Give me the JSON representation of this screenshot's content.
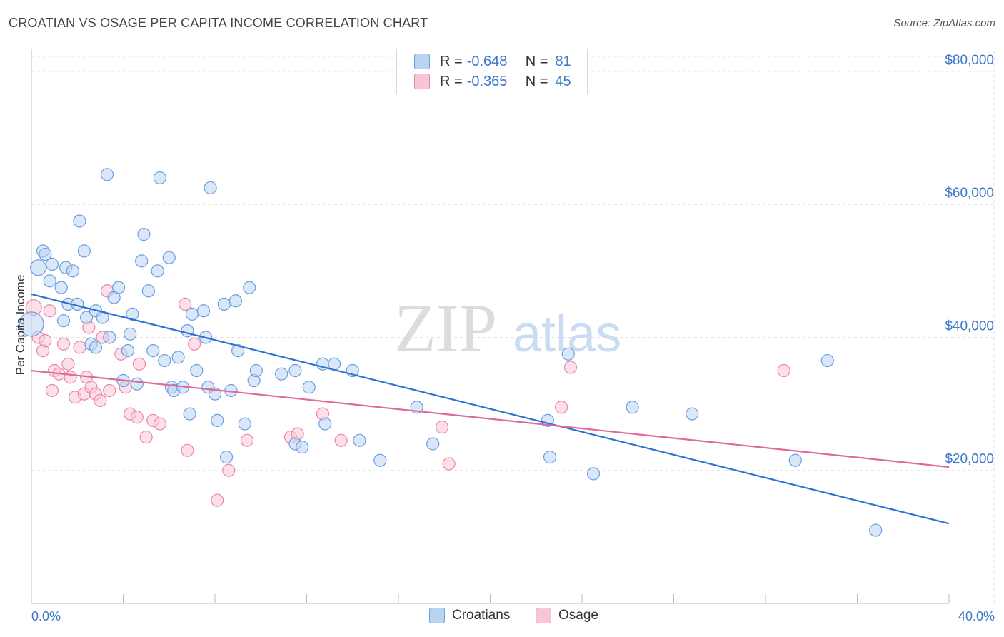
{
  "title": "CROATIAN VS OSAGE PER CAPITA INCOME CORRELATION CHART",
  "source": "Source: ZipAtlas.com",
  "watermark": {
    "zip": "ZIP",
    "atlas": "atlas"
  },
  "legend": {
    "rows": [
      {
        "r_label": "R =",
        "r_value": "-0.648",
        "n_label": "N =",
        "n_value": "81"
      },
      {
        "r_label": "R =",
        "r_value": "-0.365",
        "n_label": "N =",
        "n_value": "45"
      }
    ]
  },
  "bottom_legend": {
    "croatians": "Croatians",
    "osage": "Osage"
  },
  "colors": {
    "croatians_fill": "#b9d3f3",
    "croatians_stroke": "#6a9fe0",
    "croatians_line": "#2f72d4",
    "osage_fill": "#f9c4d6",
    "osage_stroke": "#ea88aa",
    "osage_line": "#e0689a",
    "tick_text": "#3b78c9",
    "grid": "#e2e2e2"
  },
  "chart_data": {
    "type": "scatter",
    "ylabel": "Per Capita Income",
    "xlim": [
      0,
      40
    ],
    "ylim": [
      0,
      83000
    ],
    "y_ticks": [
      {
        "v": 20000,
        "label": "$20,000"
      },
      {
        "v": 40000,
        "label": "$40,000"
      },
      {
        "v": 60000,
        "label": "$60,000"
      },
      {
        "v": 80000,
        "label": "$80,000"
      }
    ],
    "x_tick_labels": [
      {
        "v": 0,
        "label": "0.0%"
      },
      {
        "v": 40,
        "label": "40.0%"
      }
    ],
    "grid": true,
    "series": [
      {
        "name": "Croatians",
        "r": -0.648,
        "n": 81,
        "trend": {
          "x0": 0,
          "y0": 46500,
          "x1": 40,
          "y1": 12000
        },
        "points": [
          [
            0.0,
            42000
          ],
          [
            0.3,
            50500
          ],
          [
            0.5,
            53000
          ],
          [
            0.6,
            52500
          ],
          [
            0.8,
            48500
          ],
          [
            0.9,
            51000
          ],
          [
            1.3,
            47500
          ],
          [
            1.5,
            50500
          ],
          [
            1.4,
            42500
          ],
          [
            1.6,
            45000
          ],
          [
            1.8,
            50000
          ],
          [
            2.0,
            45000
          ],
          [
            2.1,
            57500
          ],
          [
            2.3,
            53000
          ],
          [
            2.4,
            43000
          ],
          [
            2.6,
            39000
          ],
          [
            2.8,
            44000
          ],
          [
            2.8,
            38500
          ],
          [
            3.1,
            43000
          ],
          [
            3.3,
            64500
          ],
          [
            3.4,
            40000
          ],
          [
            3.6,
            46000
          ],
          [
            3.8,
            47500
          ],
          [
            4.0,
            33500
          ],
          [
            4.2,
            38000
          ],
          [
            4.3,
            40500
          ],
          [
            4.4,
            43500
          ],
          [
            4.6,
            33000
          ],
          [
            4.8,
            51500
          ],
          [
            4.9,
            55500
          ],
          [
            5.1,
            47000
          ],
          [
            5.3,
            38000
          ],
          [
            5.5,
            50000
          ],
          [
            5.6,
            64000
          ],
          [
            5.8,
            36500
          ],
          [
            6.0,
            52000
          ],
          [
            6.1,
            32500
          ],
          [
            6.2,
            32000
          ],
          [
            6.4,
            37000
          ],
          [
            6.6,
            32500
          ],
          [
            6.8,
            41000
          ],
          [
            6.9,
            28500
          ],
          [
            7.0,
            43500
          ],
          [
            7.2,
            35000
          ],
          [
            7.5,
            44000
          ],
          [
            7.6,
            40000
          ],
          [
            7.7,
            32500
          ],
          [
            7.8,
            62500
          ],
          [
            8.0,
            31500
          ],
          [
            8.1,
            27500
          ],
          [
            8.4,
            45000
          ],
          [
            8.5,
            22000
          ],
          [
            8.7,
            32000
          ],
          [
            8.9,
            45500
          ],
          [
            9.0,
            38000
          ],
          [
            9.3,
            27000
          ],
          [
            9.5,
            47500
          ],
          [
            9.7,
            33500
          ],
          [
            9.8,
            35000
          ],
          [
            10.9,
            34500
          ],
          [
            11.5,
            35000
          ],
          [
            11.5,
            24000
          ],
          [
            11.8,
            23500
          ],
          [
            12.1,
            32500
          ],
          [
            12.7,
            36000
          ],
          [
            12.8,
            27000
          ],
          [
            13.2,
            36000
          ],
          [
            14.0,
            35000
          ],
          [
            14.3,
            24500
          ],
          [
            15.2,
            21500
          ],
          [
            16.8,
            29500
          ],
          [
            17.5,
            24000
          ],
          [
            22.5,
            27500
          ],
          [
            22.6,
            22000
          ],
          [
            23.4,
            37500
          ],
          [
            24.5,
            19500
          ],
          [
            26.2,
            29500
          ],
          [
            28.8,
            28500
          ],
          [
            33.3,
            21500
          ],
          [
            34.7,
            36500
          ],
          [
            36.8,
            11000
          ]
        ]
      },
      {
        "name": "Osage",
        "r": -0.365,
        "n": 45,
        "trend": {
          "x0": 0,
          "y0": 35000,
          "x1": 40,
          "y1": 20500
        },
        "points": [
          [
            0.1,
            44500
          ],
          [
            0.3,
            40000
          ],
          [
            0.5,
            38000
          ],
          [
            0.6,
            39500
          ],
          [
            0.8,
            44000
          ],
          [
            0.9,
            32000
          ],
          [
            1.0,
            35000
          ],
          [
            1.2,
            34500
          ],
          [
            1.4,
            39000
          ],
          [
            1.6,
            36000
          ],
          [
            1.7,
            34000
          ],
          [
            1.9,
            31000
          ],
          [
            2.1,
            38500
          ],
          [
            2.3,
            31500
          ],
          [
            2.4,
            34000
          ],
          [
            2.5,
            41500
          ],
          [
            2.6,
            32500
          ],
          [
            2.8,
            31500
          ],
          [
            3.0,
            30500
          ],
          [
            3.1,
            40000
          ],
          [
            3.3,
            47000
          ],
          [
            3.4,
            32000
          ],
          [
            3.9,
            37500
          ],
          [
            4.1,
            32500
          ],
          [
            4.3,
            28500
          ],
          [
            4.6,
            28000
          ],
          [
            4.7,
            36000
          ],
          [
            5.0,
            25000
          ],
          [
            5.3,
            27500
          ],
          [
            5.6,
            27000
          ],
          [
            6.7,
            45000
          ],
          [
            6.8,
            23000
          ],
          [
            7.1,
            39000
          ],
          [
            8.1,
            15500
          ],
          [
            8.6,
            20000
          ],
          [
            9.4,
            24500
          ],
          [
            11.3,
            25000
          ],
          [
            11.6,
            25500
          ],
          [
            12.7,
            28500
          ],
          [
            13.5,
            24500
          ],
          [
            17.9,
            26500
          ],
          [
            18.2,
            21000
          ],
          [
            23.1,
            29500
          ],
          [
            23.5,
            35500
          ],
          [
            32.8,
            35000
          ]
        ]
      }
    ]
  }
}
